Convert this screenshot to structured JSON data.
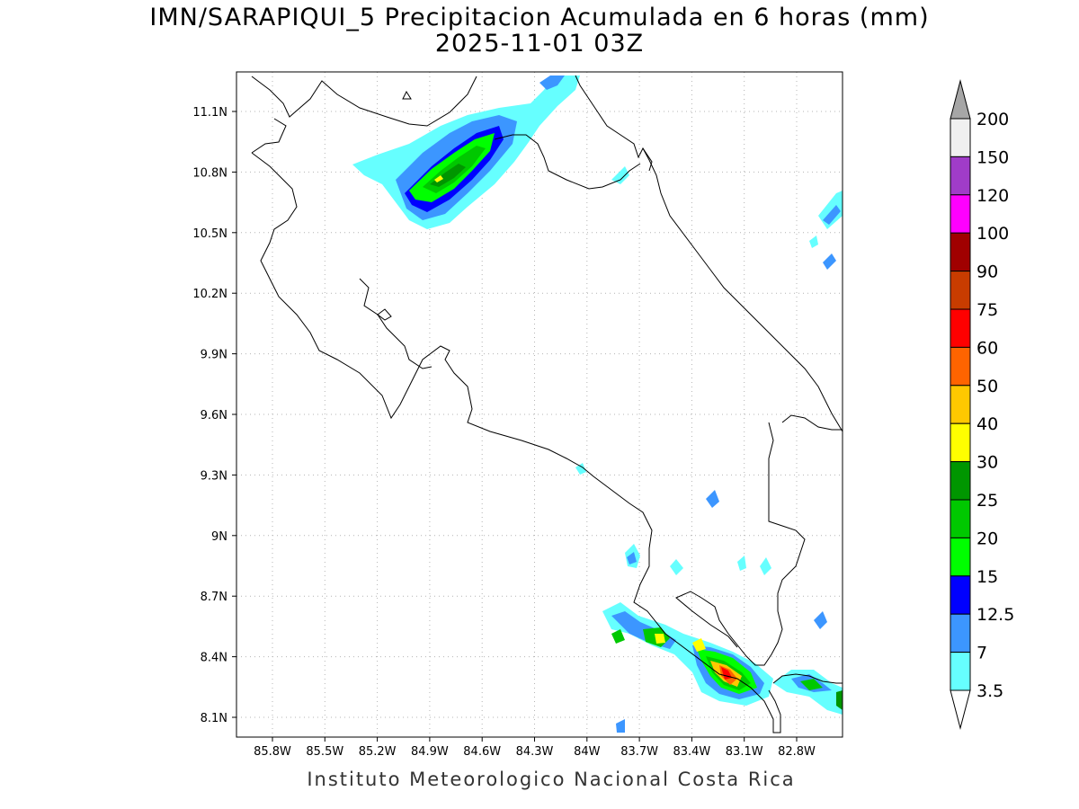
{
  "title": {
    "line1": "IMN/SARAPIQUI_5 Precipitacion Acumulada en 6 horas (mm)",
    "line2": "2025-11-01 03Z"
  },
  "footer": "Instituto Meteorologico Nacional Costa Rica",
  "map": {
    "lat_labels": [
      "11.1N",
      "10.8N",
      "10.5N",
      "10.2N",
      "9.9N",
      "9.6N",
      "9.3N",
      "9N",
      "8.7N",
      "8.4N",
      "8.1N"
    ],
    "lon_labels": [
      "85.8W",
      "85.5W",
      "85.2W",
      "84.9W",
      "84.6W",
      "84.3W",
      "84W",
      "83.7W",
      "83.4W",
      "83.1W",
      "82.8W"
    ],
    "grid": "dotted",
    "region": "Costa Rica"
  },
  "colorbar": {
    "levels": [
      "200",
      "150",
      "120",
      "100",
      "90",
      "75",
      "60",
      "50",
      "40",
      "30",
      "25",
      "20",
      "15",
      "12.5",
      "7",
      "3.5"
    ],
    "colors": [
      "#a6a6a6",
      "#f0f0f0",
      "#a03cc8",
      "#ff00ff",
      "#a00000",
      "#c83c00",
      "#ff0000",
      "#ff6400",
      "#ffc800",
      "#ffff00",
      "#009600",
      "#00c800",
      "#00ff00",
      "#0000ff",
      "#3c96ff",
      "#66ffff"
    ]
  }
}
